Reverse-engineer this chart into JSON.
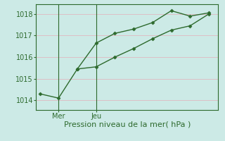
{
  "line1_x": [
    0,
    1,
    2,
    3,
    4,
    5,
    6,
    7,
    8,
    9
  ],
  "line1_y": [
    1014.3,
    1014.1,
    1015.45,
    1016.65,
    1017.1,
    1017.3,
    1017.6,
    1018.15,
    1017.9,
    1018.05
  ],
  "line2_x": [
    2,
    3,
    4,
    5,
    6,
    7,
    8,
    9
  ],
  "line2_y": [
    1015.45,
    1015.55,
    1016.0,
    1016.4,
    1016.85,
    1017.25,
    1017.45,
    1018.0
  ],
  "line_color": "#2d6a2d",
  "marker": "D",
  "marker_size": 2.5,
  "line_width": 1.0,
  "yticks": [
    1014,
    1015,
    1016,
    1017,
    1018
  ],
  "xtick_positions": [
    1,
    3
  ],
  "xtick_labels": [
    "Mer",
    "Jeu"
  ],
  "xlabel": "Pression niveau de la mer( hPa )",
  "xlabel_color": "#2d6a2d",
  "xlabel_fontsize": 8,
  "ylim": [
    1013.55,
    1018.45
  ],
  "xlim": [
    -0.2,
    9.5
  ],
  "background_color": "#cceae6",
  "grid_color": "#e0b8c0",
  "grid_linewidth": 0.6,
  "ytick_color": "#2d6a2d",
  "xtick_color": "#2d6a2d",
  "tick_fontsize": 7,
  "spine_color": "#2d6a2d",
  "vline_positions": [
    1,
    3
  ]
}
